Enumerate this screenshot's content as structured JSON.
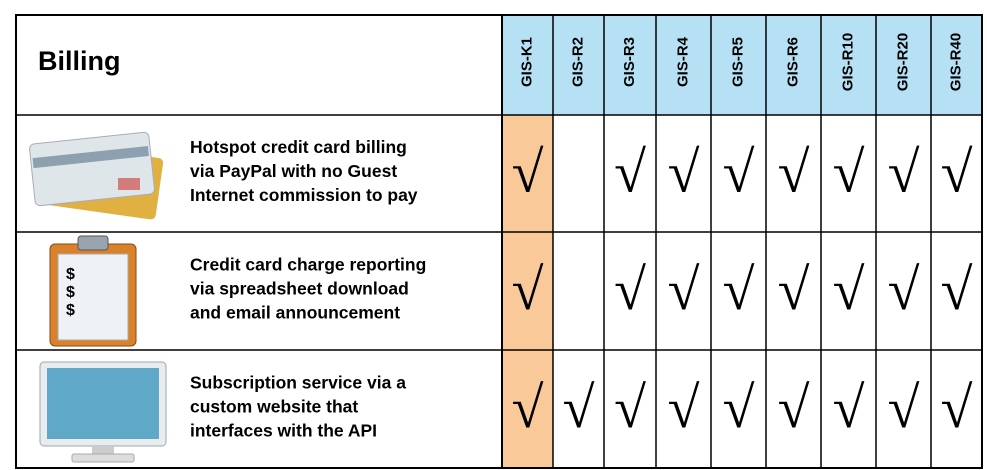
{
  "title": "Billing",
  "columns": [
    "GIS-K1",
    "GIS-R2",
    "GIS-R3",
    "GIS-R4",
    "GIS-R5",
    "GIS-R6",
    "GIS-R10",
    "GIS-R20",
    "GIS-R40"
  ],
  "rows": [
    {
      "lines": [
        "Hotspot credit card billing",
        "via PayPal with no Guest",
        "Internet commission to pay"
      ],
      "cells": [
        "√",
        null,
        "√",
        "√",
        "√",
        "√",
        "√",
        "√",
        "√"
      ]
    },
    {
      "lines": [
        "Credit card charge reporting",
        "via spreadsheet download",
        "and email announcement"
      ],
      "icon_symbols": [
        "$",
        "$",
        "$"
      ],
      "cells": [
        "√",
        null,
        "√",
        "√",
        "√",
        "√",
        "√",
        "√",
        "√"
      ]
    },
    {
      "lines": [
        "Subscription service via a",
        "custom website that",
        "interfaces with the API"
      ],
      "cells": [
        "√",
        "√",
        "√",
        "√",
        "√",
        "√",
        "√",
        "√",
        "√"
      ]
    }
  ]
}
